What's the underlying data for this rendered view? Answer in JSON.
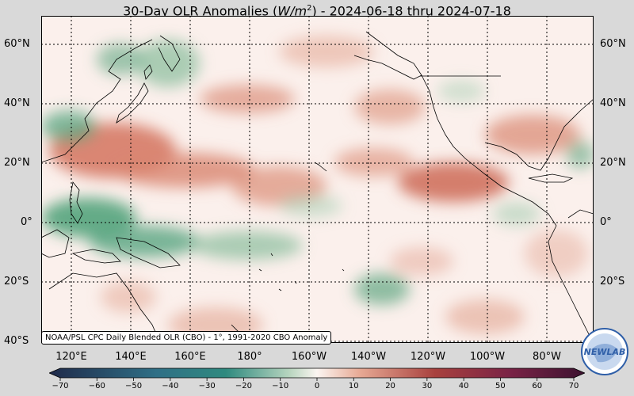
{
  "title": "30-Day OLR Anomalies (W/m²) - 2024-06-18 thru 2024-07-18",
  "title_parts": {
    "prefix": "30-Day OLR Anomalies (",
    "unit_base": "W/m",
    "unit_sup": "2",
    "suffix": ") - 2024-06-18 thru 2024-07-18"
  },
  "lat_labels": [
    "60°N",
    "40°N",
    "20°N",
    "0°",
    "20°S",
    "40°S"
  ],
  "lon_labels": [
    "120°E",
    "140°E",
    "160°E",
    "180°",
    "160°W",
    "140°W",
    "120°W",
    "100°W",
    "80°W"
  ],
  "credit": "NOAA/PSL CPC Daily Blended OLR (CBO) - 1°, 1991-2020 CBO Anomaly",
  "colorbar": {
    "ticks": [
      "−70",
      "−60",
      "−50",
      "−40",
      "−30",
      "−20",
      "−10",
      "0",
      "10",
      "20",
      "30",
      "40",
      "50",
      "60",
      "70"
    ],
    "min": -75,
    "max": 75,
    "colors": {
      "neg_far": "#1f2a4a",
      "neg_mid": "#2f8a7f",
      "neg_near": "#b9d6c0",
      "zero": "#fbf5f1",
      "pos_near": "#e7a994",
      "pos_mid": "#a8413e",
      "pos_far": "#3c1230"
    }
  },
  "colors": {
    "ocean_base": "#fbf0ec",
    "red_anom": "#d9735a",
    "green_anom": "#3f9a6e"
  },
  "logo_text": "NEWLAB"
}
